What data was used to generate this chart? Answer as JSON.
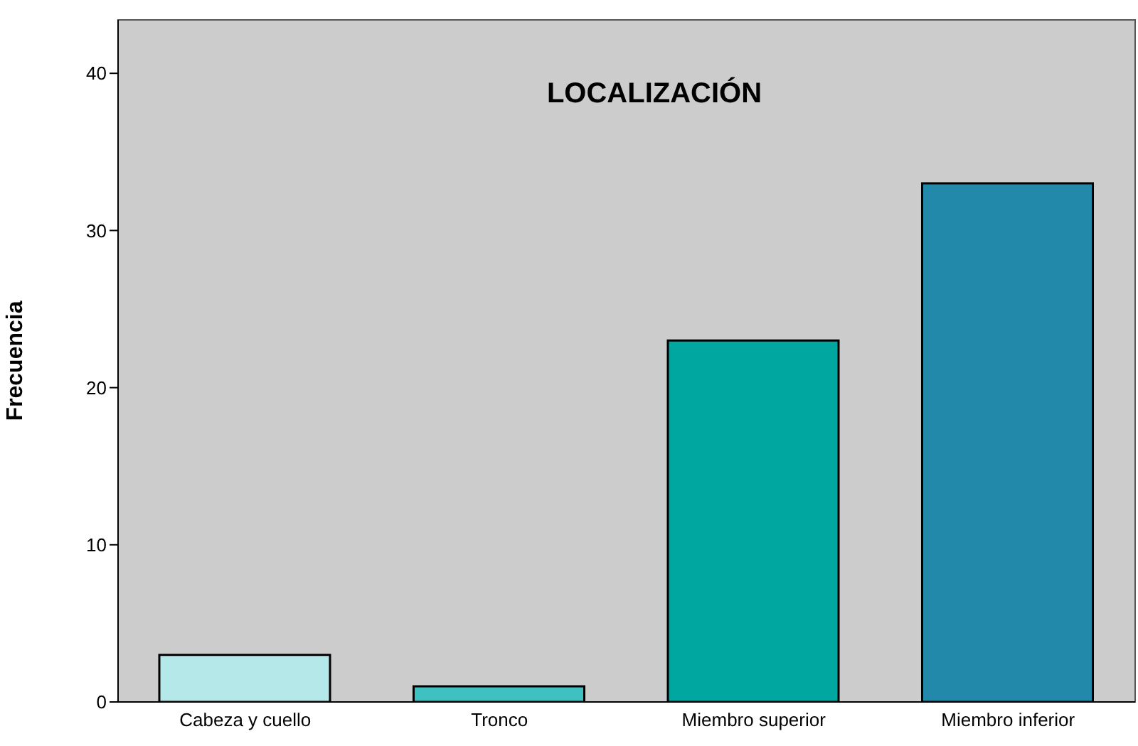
{
  "chart_data": {
    "type": "bar",
    "title": "LOCALIZACIÓN",
    "ylabel": "Frecuencia",
    "categories": [
      "Cabeza y cuello",
      "Tronco",
      "Miembro superior",
      "Miembro inferior"
    ],
    "values": [
      3,
      1,
      23,
      33
    ],
    "colors": [
      "#b5e8e8",
      "#3fc1c1",
      "#00a6a0",
      "#2389aa"
    ],
    "ylim": [
      0,
      43.4
    ],
    "yticks": [
      0,
      10,
      20,
      30,
      40
    ]
  }
}
